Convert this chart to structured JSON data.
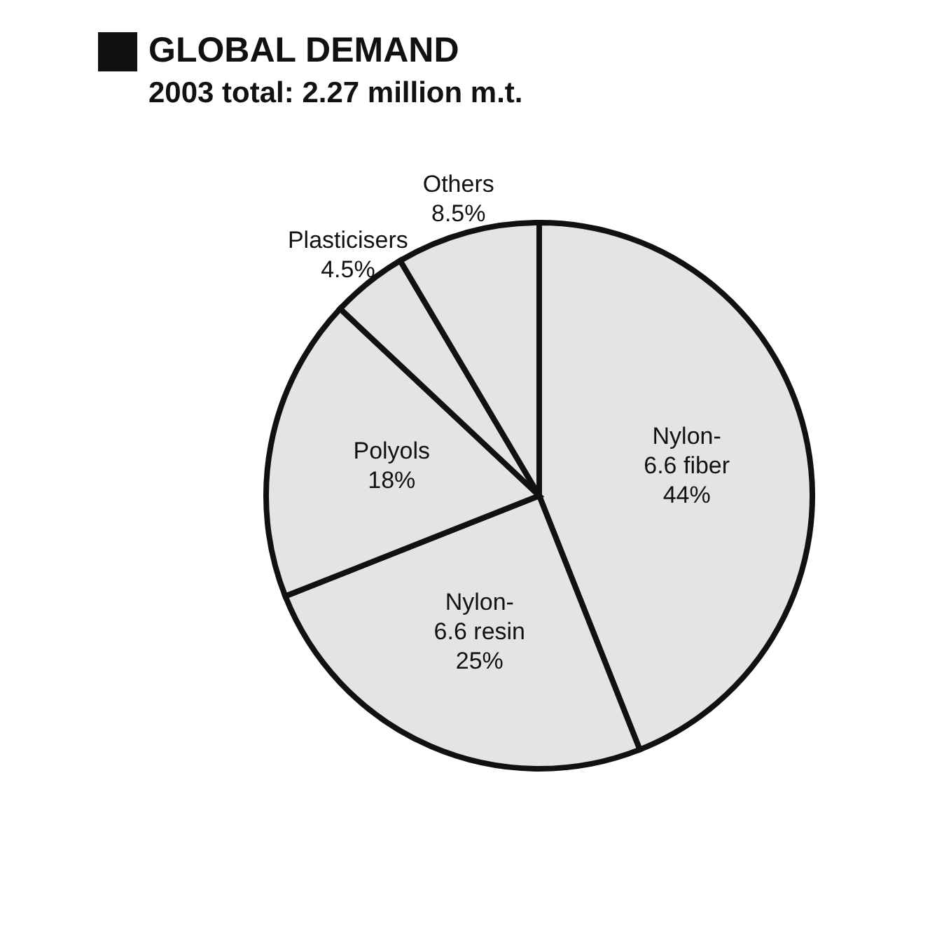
{
  "chart_data": {
    "type": "pie",
    "title": "GLOBAL DEMAND",
    "subtitle": "2003 total: 2.27 million m.t.",
    "categories": [
      "Nylon-6.6 fiber",
      "Nylon-6.6 resin",
      "Polyols",
      "Plasticisers",
      "Others"
    ],
    "values": [
      44,
      25,
      18,
      4.5,
      8.5
    ],
    "value_labels": [
      "44%",
      "25%",
      "18%",
      "4.5%",
      "8.5%"
    ],
    "colors": [
      "#e4e4e4",
      "#e4e4e4",
      "#e4e4e4",
      "#e4e4e4",
      "#e4e4e4"
    ],
    "legend": false
  }
}
